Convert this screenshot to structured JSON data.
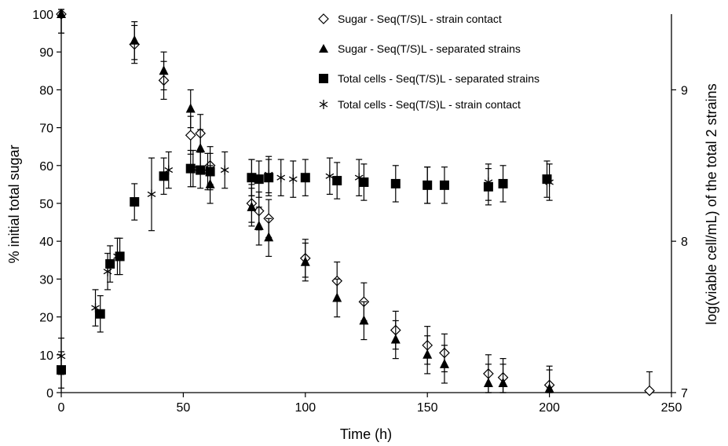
{
  "chart_data": {
    "type": "scatter",
    "xlabel": "Time (h)",
    "ylabel": "% initial total sugar",
    "y2label": "log(viable cell/mL) of the total 2 strains",
    "xlim": [
      0,
      250
    ],
    "ylim": [
      0,
      100
    ],
    "y2lim": [
      7,
      9.5
    ],
    "x_ticks": [
      "0",
      "50",
      "100",
      "150",
      "200",
      "250"
    ],
    "y_ticks": [
      "0",
      "10",
      "20",
      "30",
      "40",
      "50",
      "60",
      "70",
      "80",
      "90",
      "100"
    ],
    "y2_ticks": [
      "7",
      "8",
      "9"
    ],
    "grid": false,
    "legend_position": "top-right",
    "series": [
      {
        "name": "Sugar - Seq(T/S)L - strain contact",
        "marker": "open-diamond",
        "axis": "left",
        "x": [
          0,
          30,
          42,
          53,
          57,
          61,
          78,
          81,
          85,
          100,
          113,
          124,
          137,
          150,
          157,
          175,
          181,
          200,
          241
        ],
        "y": [
          100,
          92,
          82.5,
          68,
          68.5,
          60,
          50,
          48,
          46,
          35.5,
          29.5,
          24,
          16.5,
          12.5,
          10.5,
          5,
          4,
          2,
          0.5
        ],
        "err": [
          5,
          5,
          5,
          5,
          5,
          5,
          5,
          5,
          5,
          5,
          5,
          5,
          5,
          5,
          5,
          5,
          5,
          5,
          5
        ]
      },
      {
        "name": "Sugar - Seq(T/S)L - separated strains",
        "marker": "filled-triangle",
        "axis": "left",
        "x": [
          0,
          30,
          42,
          53,
          57,
          61,
          78,
          81,
          85,
          100,
          113,
          124,
          137,
          150,
          157,
          175,
          181,
          200
        ],
        "y": [
          100,
          93,
          85,
          75,
          64.5,
          55,
          49,
          44,
          41,
          34.5,
          25,
          19,
          14,
          10,
          7.5,
          2.5,
          2.5,
          1
        ],
        "err": [
          5,
          5,
          5,
          5,
          5,
          5,
          5,
          5,
          5,
          5,
          5,
          5,
          5,
          5,
          5,
          5,
          5,
          5
        ]
      },
      {
        "name": "Total cells - Seq(T/S)L - separated strains",
        "marker": "filled-square",
        "axis": "right",
        "x": [
          0,
          16,
          20,
          24,
          30,
          42,
          53,
          57,
          61,
          78,
          81,
          85,
          100,
          113,
          124,
          137,
          150,
          157,
          175,
          181,
          199
        ],
        "y": [
          7.15,
          7.52,
          7.85,
          7.9,
          8.26,
          8.43,
          8.48,
          8.47,
          8.46,
          8.42,
          8.41,
          8.42,
          8.42,
          8.4,
          8.39,
          8.38,
          8.37,
          8.37,
          8.36,
          8.38,
          8.41
        ],
        "err": [
          0.12,
          0.12,
          0.12,
          0.12,
          0.12,
          0.12,
          0.12,
          0.12,
          0.12,
          0.12,
          0.12,
          0.12,
          0.12,
          0.12,
          0.12,
          0.12,
          0.12,
          0.12,
          0.12,
          0.12,
          0.12
        ]
      },
      {
        "name": "Total cells - Seq(T/S)L - strain contact",
        "marker": "asterisk",
        "axis": "right",
        "x": [
          0,
          14,
          19,
          23,
          37,
          44,
          54,
          60,
          67,
          78,
          85,
          90,
          95,
          110,
          122,
          150,
          175,
          200
        ],
        "y": [
          7.24,
          7.56,
          7.8,
          7.9,
          8.31,
          8.47,
          8.48,
          8.46,
          8.47,
          8.42,
          8.44,
          8.42,
          8.41,
          8.43,
          8.42,
          8.37,
          8.39,
          8.39
        ],
        "err": [
          0.12,
          0.12,
          0.12,
          0.12,
          0.24,
          0.12,
          0.12,
          0.12,
          0.12,
          0.12,
          0.12,
          0.12,
          0.12,
          0.12,
          0.12,
          0.12,
          0.12,
          0.12
        ]
      }
    ]
  }
}
